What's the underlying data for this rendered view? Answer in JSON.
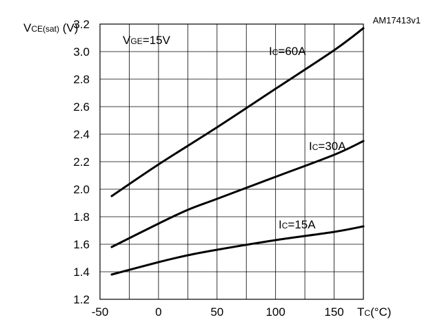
{
  "chart_data": {
    "type": "line",
    "reference_id": "AM17413v1",
    "ylabel": {
      "main": "V",
      "sub": "CE(sat)",
      "unit": " (V)"
    },
    "xlabel": {
      "main": "T",
      "sub": "C",
      "unit": "(°C)"
    },
    "condition": {
      "main": "V",
      "sub": "GE",
      "rest": "=15V"
    },
    "xlim": [
      -50,
      175
    ],
    "ylim": [
      1.2,
      3.2
    ],
    "xticks": [
      -50,
      0,
      50,
      100,
      150
    ],
    "yticks": [
      1.2,
      1.4,
      1.6,
      1.8,
      2.0,
      2.2,
      2.4,
      2.6,
      2.8,
      3.0,
      3.2
    ],
    "ytick_labels": [
      "1.2",
      "1.4",
      "1.6",
      "1.8",
      "2.0",
      "2.2",
      "2.4",
      "2.6",
      "2.8",
      "3.0",
      "3.2"
    ],
    "xtick_labels": [
      "-50",
      "0",
      "50",
      "100",
      "150"
    ],
    "grid": true,
    "series": [
      {
        "name": "Ic=60A",
        "label_main": "I",
        "label_sub": "C",
        "label_rest": "=60A",
        "x": [
          -40,
          0,
          50,
          100,
          150,
          175
        ],
        "y": [
          1.95,
          2.18,
          2.45,
          2.73,
          3.01,
          3.17
        ]
      },
      {
        "name": "Ic=30A",
        "label_main": "I",
        "label_sub": "C",
        "label_rest": "=30A",
        "x": [
          -40,
          0,
          25,
          50,
          100,
          150,
          175
        ],
        "y": [
          1.58,
          1.75,
          1.85,
          1.93,
          2.09,
          2.25,
          2.35
        ]
      },
      {
        "name": "Ic=15A",
        "label_main": "I",
        "label_sub": "C",
        "label_rest": "=15A",
        "x": [
          -40,
          0,
          25,
          50,
          100,
          150,
          175
        ],
        "y": [
          1.38,
          1.47,
          1.52,
          1.56,
          1.63,
          1.69,
          1.73
        ]
      }
    ]
  }
}
